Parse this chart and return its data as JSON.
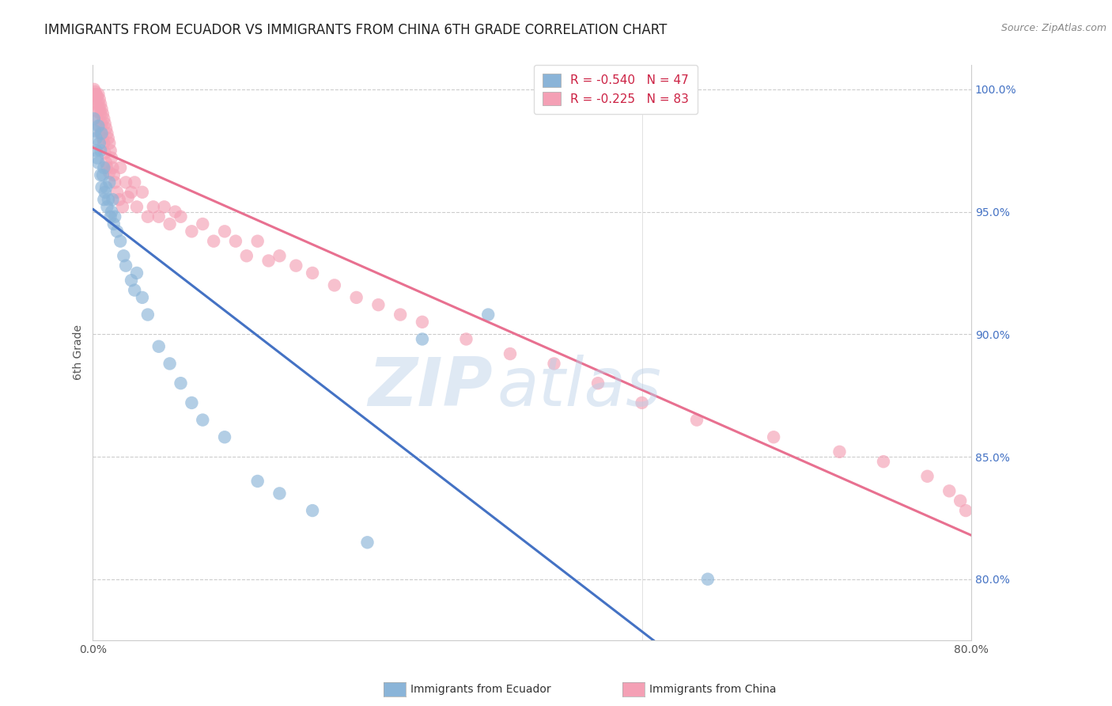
{
  "title": "IMMIGRANTS FROM ECUADOR VS IMMIGRANTS FROM CHINA 6TH GRADE CORRELATION CHART",
  "source": "Source: ZipAtlas.com",
  "ylabel": "6th Grade",
  "legend_label_1": "Immigrants from Ecuador",
  "legend_label_2": "Immigrants from China",
  "r_ecuador": -0.54,
  "n_ecuador": 47,
  "r_china": -0.225,
  "n_china": 83,
  "color_ecuador": "#8ab4d8",
  "color_china": "#f4a0b5",
  "line_color_ecuador": "#4472c4",
  "line_color_china": "#e87090",
  "xlim": [
    0.0,
    0.8
  ],
  "ylim": [
    0.775,
    1.01
  ],
  "xticks": [
    0.0,
    0.1,
    0.2,
    0.3,
    0.4,
    0.5,
    0.6,
    0.7,
    0.8
  ],
  "xtick_labels": [
    "0.0%",
    "",
    "",
    "",
    "",
    "",
    "",
    "",
    "80.0%"
  ],
  "yticks_right": [
    0.8,
    0.85,
    0.9,
    0.95,
    1.0
  ],
  "ytick_labels_right": [
    "80.0%",
    "85.0%",
    "90.0%",
    "95.0%",
    "100.0%"
  ],
  "ecuador_x": [
    0.001,
    0.002,
    0.003,
    0.003,
    0.004,
    0.005,
    0.005,
    0.006,
    0.007,
    0.007,
    0.008,
    0.008,
    0.009,
    0.01,
    0.01,
    0.011,
    0.012,
    0.013,
    0.014,
    0.015,
    0.016,
    0.017,
    0.018,
    0.019,
    0.02,
    0.022,
    0.025,
    0.028,
    0.03,
    0.035,
    0.038,
    0.04,
    0.045,
    0.05,
    0.06,
    0.07,
    0.08,
    0.09,
    0.1,
    0.12,
    0.15,
    0.17,
    0.2,
    0.25,
    0.3,
    0.36,
    0.56
  ],
  "ecuador_y": [
    0.988,
    0.983,
    0.98,
    0.975,
    0.972,
    0.985,
    0.97,
    0.978,
    0.975,
    0.965,
    0.982,
    0.96,
    0.965,
    0.968,
    0.955,
    0.958,
    0.96,
    0.952,
    0.955,
    0.962,
    0.948,
    0.95,
    0.955,
    0.945,
    0.948,
    0.942,
    0.938,
    0.932,
    0.928,
    0.922,
    0.918,
    0.925,
    0.915,
    0.908,
    0.895,
    0.888,
    0.88,
    0.872,
    0.865,
    0.858,
    0.84,
    0.835,
    0.828,
    0.815,
    0.898,
    0.908,
    0.8
  ],
  "china_x": [
    0.001,
    0.001,
    0.002,
    0.002,
    0.003,
    0.003,
    0.004,
    0.004,
    0.005,
    0.005,
    0.005,
    0.006,
    0.006,
    0.006,
    0.007,
    0.007,
    0.007,
    0.008,
    0.008,
    0.009,
    0.009,
    0.01,
    0.01,
    0.011,
    0.011,
    0.012,
    0.012,
    0.013,
    0.013,
    0.014,
    0.015,
    0.015,
    0.016,
    0.017,
    0.018,
    0.019,
    0.02,
    0.022,
    0.024,
    0.025,
    0.027,
    0.03,
    0.032,
    0.035,
    0.038,
    0.04,
    0.045,
    0.05,
    0.055,
    0.06,
    0.065,
    0.07,
    0.075,
    0.08,
    0.09,
    0.1,
    0.11,
    0.12,
    0.13,
    0.14,
    0.15,
    0.16,
    0.17,
    0.185,
    0.2,
    0.22,
    0.24,
    0.26,
    0.28,
    0.3,
    0.34,
    0.38,
    0.42,
    0.46,
    0.5,
    0.55,
    0.62,
    0.68,
    0.72,
    0.76,
    0.78,
    0.79,
    0.795
  ],
  "china_y": [
    1.0,
    0.998,
    0.999,
    0.996,
    0.998,
    0.994,
    0.997,
    0.991,
    0.998,
    0.994,
    0.988,
    0.996,
    0.992,
    0.985,
    0.994,
    0.99,
    0.982,
    0.992,
    0.986,
    0.99,
    0.98,
    0.988,
    0.978,
    0.986,
    0.974,
    0.984,
    0.97,
    0.982,
    0.968,
    0.98,
    0.978,
    0.966,
    0.975,
    0.972,
    0.968,
    0.965,
    0.962,
    0.958,
    0.955,
    0.968,
    0.952,
    0.962,
    0.956,
    0.958,
    0.962,
    0.952,
    0.958,
    0.948,
    0.952,
    0.948,
    0.952,
    0.945,
    0.95,
    0.948,
    0.942,
    0.945,
    0.938,
    0.942,
    0.938,
    0.932,
    0.938,
    0.93,
    0.932,
    0.928,
    0.925,
    0.92,
    0.915,
    0.912,
    0.908,
    0.905,
    0.898,
    0.892,
    0.888,
    0.88,
    0.872,
    0.865,
    0.858,
    0.852,
    0.848,
    0.842,
    0.836,
    0.832,
    0.828
  ],
  "watermark_zip": "ZIP",
  "watermark_atlas": "atlas",
  "title_fontsize": 12,
  "source_fontsize": 9,
  "tick_fontsize": 10,
  "legend_fontsize": 11
}
